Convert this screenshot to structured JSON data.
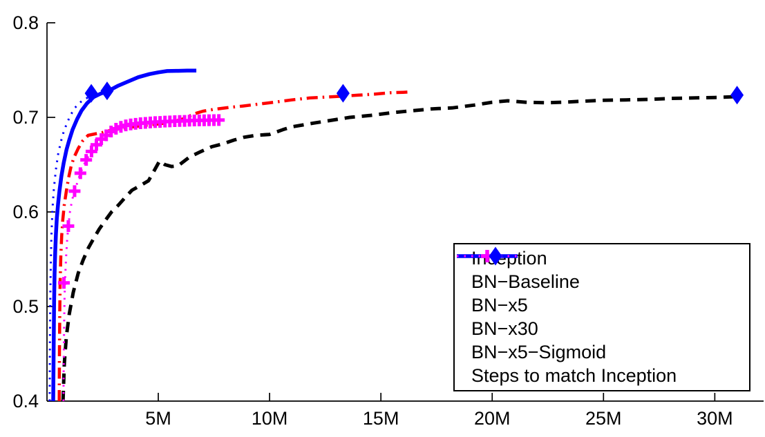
{
  "chart_data": {
    "type": "line",
    "title": "",
    "xlabel": "",
    "ylabel": "",
    "xlim": [
      0,
      32.1
    ],
    "ylim": [
      0.4,
      0.8
    ],
    "grid": false,
    "axis_color": "#000000",
    "x_ticks": [
      {
        "v": 5,
        "label": "5M"
      },
      {
        "v": 10,
        "label": "10M"
      },
      {
        "v": 15,
        "label": "15M"
      },
      {
        "v": 20,
        "label": "20M"
      },
      {
        "v": 25,
        "label": "25M"
      },
      {
        "v": 30,
        "label": "30M"
      }
    ],
    "y_ticks": [
      {
        "v": 0.4,
        "label": "0.4"
      },
      {
        "v": 0.5,
        "label": "0.5"
      },
      {
        "v": 0.6,
        "label": "0.6"
      },
      {
        "v": 0.7,
        "label": "0.7"
      },
      {
        "v": 0.8,
        "label": "0.8"
      }
    ],
    "legend": {
      "position": "lower-right",
      "border_color": "#000000",
      "background": "#ffffff"
    },
    "series": [
      {
        "name": "Inception",
        "color": "#000000",
        "style": "dashed",
        "line_width": 5,
        "marker": "none",
        "points": [
          [
            0.72,
            0.4
          ],
          [
            0.78,
            0.44
          ],
          [
            0.87,
            0.468
          ],
          [
            1.0,
            0.492
          ],
          [
            1.18,
            0.515
          ],
          [
            1.4,
            0.535
          ],
          [
            1.62,
            0.549
          ],
          [
            1.86,
            0.562
          ],
          [
            2.1,
            0.572
          ],
          [
            2.35,
            0.582
          ],
          [
            2.62,
            0.591
          ],
          [
            2.9,
            0.6
          ],
          [
            3.2,
            0.607
          ],
          [
            3.5,
            0.615
          ],
          [
            3.82,
            0.623
          ],
          [
            4.2,
            0.628
          ],
          [
            4.56,
            0.633
          ],
          [
            4.8,
            0.643
          ],
          [
            5.06,
            0.654
          ],
          [
            5.3,
            0.65
          ],
          [
            5.6,
            0.648
          ],
          [
            5.9,
            0.649
          ],
          [
            6.4,
            0.658
          ],
          [
            6.93,
            0.664
          ],
          [
            7.4,
            0.669
          ],
          [
            7.9,
            0.672
          ],
          [
            8.4,
            0.676
          ],
          [
            8.85,
            0.679
          ],
          [
            9.4,
            0.681
          ],
          [
            10.0,
            0.682
          ],
          [
            10.6,
            0.687
          ],
          [
            11.0,
            0.69
          ],
          [
            11.5,
            0.692
          ],
          [
            12.0,
            0.694
          ],
          [
            12.8,
            0.697
          ],
          [
            13.6,
            0.7
          ],
          [
            14.5,
            0.702
          ],
          [
            15.5,
            0.705
          ],
          [
            16.4,
            0.707
          ],
          [
            17.3,
            0.709
          ],
          [
            18.2,
            0.71
          ],
          [
            19.2,
            0.713
          ],
          [
            20.0,
            0.716
          ],
          [
            20.7,
            0.7175
          ],
          [
            21.5,
            0.716
          ],
          [
            22.4,
            0.7155
          ],
          [
            23.2,
            0.716
          ],
          [
            24.0,
            0.717
          ],
          [
            25.0,
            0.718
          ],
          [
            26.0,
            0.7185
          ],
          [
            27.0,
            0.719
          ],
          [
            28.0,
            0.72
          ],
          [
            29.0,
            0.7205
          ],
          [
            30.0,
            0.721
          ],
          [
            31.0,
            0.722
          ]
        ]
      },
      {
        "name": "BN−Baseline",
        "color": "#ff0000",
        "style": "dashdot",
        "line_width": 4.5,
        "marker": "none",
        "points": [
          [
            0.55,
            0.4
          ],
          [
            0.56,
            0.45
          ],
          [
            0.575,
            0.495
          ],
          [
            0.59,
            0.525
          ],
          [
            0.62,
            0.553
          ],
          [
            0.66,
            0.575
          ],
          [
            0.71,
            0.592
          ],
          [
            0.78,
            0.608
          ],
          [
            0.87,
            0.622
          ],
          [
            0.97,
            0.636
          ],
          [
            1.09,
            0.649
          ],
          [
            1.22,
            0.658
          ],
          [
            1.4,
            0.667
          ],
          [
            1.6,
            0.675
          ],
          [
            1.85,
            0.681
          ],
          [
            2.15,
            0.6825
          ],
          [
            2.5,
            0.684
          ],
          [
            2.9,
            0.6865
          ],
          [
            3.4,
            0.6885
          ],
          [
            3.9,
            0.69
          ],
          [
            4.4,
            0.6915
          ],
          [
            5.0,
            0.693
          ],
          [
            5.6,
            0.695
          ],
          [
            6.2,
            0.699
          ],
          [
            6.58,
            0.7035
          ],
          [
            7.0,
            0.7065
          ],
          [
            7.5,
            0.7085
          ],
          [
            8.2,
            0.7105
          ],
          [
            8.8,
            0.712
          ],
          [
            9.5,
            0.714
          ],
          [
            10.2,
            0.716
          ],
          [
            11.0,
            0.7185
          ],
          [
            11.8,
            0.7205
          ],
          [
            12.6,
            0.7215
          ],
          [
            13.3,
            0.7225
          ],
          [
            14.0,
            0.7235
          ],
          [
            14.7,
            0.7245
          ],
          [
            15.4,
            0.726
          ],
          [
            16.0,
            0.7265
          ],
          [
            16.4,
            0.727
          ]
        ]
      },
      {
        "name": "BN−x5",
        "color": "#0000ff",
        "style": "dotted",
        "line_width": 3,
        "marker": "none",
        "points": [
          [
            0.12,
            0.4
          ],
          [
            0.13,
            0.46
          ],
          [
            0.15,
            0.51
          ],
          [
            0.17,
            0.545
          ],
          [
            0.2,
            0.575
          ],
          [
            0.25,
            0.605
          ],
          [
            0.31,
            0.625
          ],
          [
            0.4,
            0.645
          ],
          [
            0.5,
            0.661
          ],
          [
            0.62,
            0.674
          ],
          [
            0.75,
            0.685
          ],
          [
            0.9,
            0.694
          ],
          [
            1.05,
            0.702
          ],
          [
            1.25,
            0.71
          ],
          [
            1.45,
            0.715
          ],
          [
            1.65,
            0.719
          ],
          [
            1.85,
            0.721
          ],
          [
            2.05,
            0.7225
          ]
        ]
      },
      {
        "name": "BN−x30",
        "color": "#0000ff",
        "style": "solid",
        "line_width": 5.5,
        "marker": "none",
        "points": [
          [
            0.28,
            0.4
          ],
          [
            0.3,
            0.46
          ],
          [
            0.32,
            0.505
          ],
          [
            0.34,
            0.535
          ],
          [
            0.37,
            0.558
          ],
          [
            0.4,
            0.576
          ],
          [
            0.44,
            0.593
          ],
          [
            0.5,
            0.609
          ],
          [
            0.56,
            0.622
          ],
          [
            0.65,
            0.638
          ],
          [
            0.75,
            0.652
          ],
          [
            0.88,
            0.666
          ],
          [
            1.0,
            0.676
          ],
          [
            1.15,
            0.687
          ],
          [
            1.35,
            0.698
          ],
          [
            1.55,
            0.707
          ],
          [
            1.8,
            0.715
          ],
          [
            2.1,
            0.7215
          ],
          [
            2.4,
            0.725
          ],
          [
            2.8,
            0.7285
          ],
          [
            3.2,
            0.7335
          ],
          [
            3.6,
            0.7375
          ],
          [
            4.1,
            0.7425
          ],
          [
            4.6,
            0.7458
          ],
          [
            5.0,
            0.7476
          ],
          [
            5.4,
            0.749
          ],
          [
            5.9,
            0.7492
          ],
          [
            6.3,
            0.7495
          ],
          [
            6.71,
            0.7495
          ]
        ]
      },
      {
        "name": "BN−x5−Sigmoid",
        "color": "#ff00ff",
        "style": "dotted",
        "line_width": 3,
        "marker": "plus",
        "points": [
          [
            0.74,
            0.4
          ],
          [
            0.75,
            0.44
          ],
          [
            0.77,
            0.48
          ],
          [
            0.79,
            0.51
          ],
          [
            0.82,
            0.532
          ],
          [
            0.86,
            0.553
          ],
          [
            0.91,
            0.572
          ],
          [
            0.96,
            0.585
          ],
          [
            1.03,
            0.6
          ],
          [
            1.13,
            0.613
          ],
          [
            1.24,
            0.622
          ],
          [
            1.5,
            0.641
          ],
          [
            1.76,
            0.655
          ],
          [
            2.0,
            0.664
          ],
          [
            2.22,
            0.671
          ],
          [
            2.44,
            0.677
          ],
          [
            2.66,
            0.681
          ],
          [
            2.88,
            0.685
          ],
          [
            3.1,
            0.688
          ],
          [
            3.32,
            0.69
          ],
          [
            3.54,
            0.6915
          ],
          [
            3.76,
            0.6925
          ],
          [
            3.98,
            0.6932
          ],
          [
            4.2,
            0.6938
          ],
          [
            4.42,
            0.6942
          ],
          [
            4.64,
            0.6946
          ],
          [
            4.86,
            0.695
          ],
          [
            5.08,
            0.6952
          ],
          [
            5.3,
            0.6955
          ],
          [
            5.52,
            0.6957
          ],
          [
            5.74,
            0.696
          ],
          [
            5.96,
            0.6962
          ],
          [
            6.18,
            0.6963
          ],
          [
            6.4,
            0.6965
          ],
          [
            6.62,
            0.6967
          ],
          [
            6.84,
            0.6968
          ],
          [
            7.06,
            0.6969
          ],
          [
            7.28,
            0.697
          ],
          [
            7.5,
            0.6971
          ],
          [
            7.76,
            0.6972
          ]
        ],
        "marker_points": [
          [
            0.76,
            0.525
          ],
          [
            0.96,
            0.585
          ],
          [
            1.24,
            0.622
          ],
          [
            1.5,
            0.641
          ],
          [
            1.76,
            0.655
          ],
          [
            2.0,
            0.664
          ],
          [
            2.22,
            0.671
          ],
          [
            2.44,
            0.677
          ],
          [
            2.66,
            0.681
          ],
          [
            2.88,
            0.685
          ],
          [
            3.1,
            0.688
          ],
          [
            3.32,
            0.69
          ],
          [
            3.54,
            0.6915
          ],
          [
            3.76,
            0.6925
          ],
          [
            3.98,
            0.6932
          ],
          [
            4.2,
            0.6938
          ],
          [
            4.42,
            0.6942
          ],
          [
            4.64,
            0.6946
          ],
          [
            4.86,
            0.695
          ],
          [
            5.08,
            0.6952
          ],
          [
            5.3,
            0.6955
          ],
          [
            5.52,
            0.6957
          ],
          [
            5.74,
            0.696
          ],
          [
            5.96,
            0.6962
          ],
          [
            6.18,
            0.6963
          ],
          [
            6.4,
            0.6965
          ],
          [
            6.62,
            0.6967
          ],
          [
            6.84,
            0.6968
          ],
          [
            7.06,
            0.6969
          ],
          [
            7.28,
            0.697
          ],
          [
            7.5,
            0.6971
          ],
          [
            7.72,
            0.6972
          ]
        ]
      },
      {
        "name": "Steps to match Inception",
        "color": "#0000ff",
        "style": "none",
        "line_width": 0,
        "marker": "diamond",
        "points": [
          [
            1.99,
            0.7255
          ],
          [
            2.7,
            0.728
          ],
          [
            13.3,
            0.7255
          ],
          [
            31.0,
            0.7235
          ]
        ]
      }
    ]
  }
}
